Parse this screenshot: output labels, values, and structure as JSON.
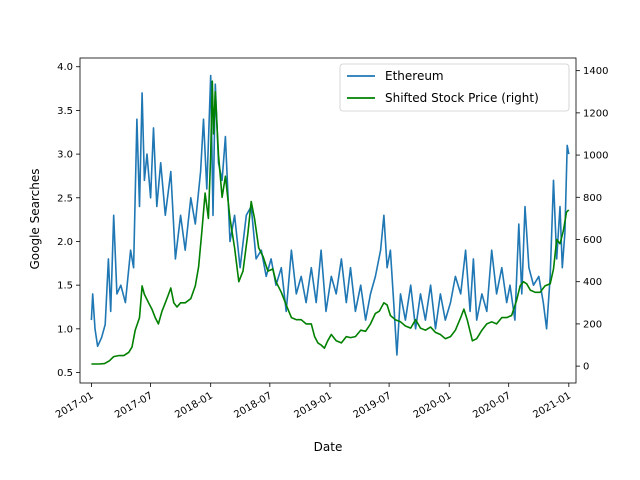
{
  "chart_data": {
    "type": "line",
    "xlabel": "Date",
    "ylabel_left": "Google Searches",
    "xlim": [
      "2016-11-27",
      "2021-01-23"
    ],
    "ylim_left": [
      0.38,
      4.1
    ],
    "ylim_right": [
      -80,
      1460
    ],
    "x_ticks": [
      "2017-01",
      "2017-07",
      "2018-01",
      "2018-07",
      "2019-01",
      "2019-07",
      "2020-01",
      "2020-07",
      "2021-01"
    ],
    "y_ticks_left": [
      "0.5",
      "1.0",
      "1.5",
      "2.0",
      "2.5",
      "3.0",
      "3.5",
      "4.0"
    ],
    "y_ticks_right": [
      "0",
      "200",
      "400",
      "600",
      "800",
      "1000",
      "1200",
      "1400"
    ],
    "legend_position": "top-right",
    "series": [
      {
        "name": "Ethereum",
        "axis": "left",
        "color": "#1f77b4",
        "points": [
          [
            "2017-01-01",
            1.1
          ],
          [
            "2017-01-05",
            1.4
          ],
          [
            "2017-01-12",
            1.0
          ],
          [
            "2017-01-20",
            0.8
          ],
          [
            "2017-02-01",
            0.9
          ],
          [
            "2017-02-12",
            1.05
          ],
          [
            "2017-02-22",
            1.8
          ],
          [
            "2017-03-01",
            1.2
          ],
          [
            "2017-03-10",
            2.3
          ],
          [
            "2017-03-20",
            1.4
          ],
          [
            "2017-04-01",
            1.5
          ],
          [
            "2017-04-15",
            1.3
          ],
          [
            "2017-05-01",
            1.9
          ],
          [
            "2017-05-10",
            1.7
          ],
          [
            "2017-05-20",
            3.4
          ],
          [
            "2017-05-28",
            2.4
          ],
          [
            "2017-06-05",
            3.7
          ],
          [
            "2017-06-12",
            2.7
          ],
          [
            "2017-06-20",
            3.0
          ],
          [
            "2017-07-01",
            2.5
          ],
          [
            "2017-07-10",
            3.3
          ],
          [
            "2017-07-20",
            2.4
          ],
          [
            "2017-08-01",
            2.9
          ],
          [
            "2017-08-15",
            2.3
          ],
          [
            "2017-09-01",
            2.8
          ],
          [
            "2017-09-15",
            1.8
          ],
          [
            "2017-10-01",
            2.3
          ],
          [
            "2017-10-15",
            1.9
          ],
          [
            "2017-11-01",
            2.5
          ],
          [
            "2017-11-15",
            2.2
          ],
          [
            "2017-12-01",
            2.8
          ],
          [
            "2017-12-10",
            3.4
          ],
          [
            "2017-12-20",
            2.6
          ],
          [
            "2018-01-01",
            3.9
          ],
          [
            "2018-01-08",
            2.3
          ],
          [
            "2018-01-15",
            3.8
          ],
          [
            "2018-01-25",
            2.9
          ],
          [
            "2018-02-05",
            2.7
          ],
          [
            "2018-02-15",
            3.2
          ],
          [
            "2018-03-01",
            2.0
          ],
          [
            "2018-03-15",
            2.3
          ],
          [
            "2018-04-01",
            1.7
          ],
          [
            "2018-04-20",
            2.3
          ],
          [
            "2018-05-05",
            2.4
          ],
          [
            "2018-05-20",
            1.8
          ],
          [
            "2018-06-05",
            1.9
          ],
          [
            "2018-06-20",
            1.6
          ],
          [
            "2018-07-05",
            1.8
          ],
          [
            "2018-07-20",
            1.5
          ],
          [
            "2018-08-05",
            1.7
          ],
          [
            "2018-08-20",
            1.2
          ],
          [
            "2018-09-05",
            1.9
          ],
          [
            "2018-09-20",
            1.4
          ],
          [
            "2018-10-05",
            1.6
          ],
          [
            "2018-10-20",
            1.3
          ],
          [
            "2018-11-05",
            1.7
          ],
          [
            "2018-11-20",
            1.3
          ],
          [
            "2018-12-05",
            1.9
          ],
          [
            "2018-12-20",
            1.2
          ],
          [
            "2019-01-05",
            1.6
          ],
          [
            "2019-01-20",
            1.4
          ],
          [
            "2019-02-05",
            1.8
          ],
          [
            "2019-02-20",
            1.3
          ],
          [
            "2019-03-05",
            1.7
          ],
          [
            "2019-03-20",
            1.2
          ],
          [
            "2019-04-05",
            1.5
          ],
          [
            "2019-04-20",
            1.1
          ],
          [
            "2019-05-05",
            1.4
          ],
          [
            "2019-05-20",
            1.6
          ],
          [
            "2019-06-05",
            1.9
          ],
          [
            "2019-06-15",
            2.3
          ],
          [
            "2019-06-25",
            1.7
          ],
          [
            "2019-07-05",
            1.9
          ],
          [
            "2019-07-15",
            1.3
          ],
          [
            "2019-07-25",
            0.7
          ],
          [
            "2019-08-05",
            1.4
          ],
          [
            "2019-08-20",
            1.1
          ],
          [
            "2019-09-05",
            1.5
          ],
          [
            "2019-09-20",
            1.0
          ],
          [
            "2019-10-05",
            1.4
          ],
          [
            "2019-10-20",
            1.1
          ],
          [
            "2019-11-05",
            1.5
          ],
          [
            "2019-11-20",
            1.0
          ],
          [
            "2019-12-05",
            1.4
          ],
          [
            "2019-12-20",
            1.1
          ],
          [
            "2020-01-05",
            1.3
          ],
          [
            "2020-01-20",
            1.6
          ],
          [
            "2020-02-05",
            1.4
          ],
          [
            "2020-02-20",
            1.9
          ],
          [
            "2020-03-05",
            1.2
          ],
          [
            "2020-03-15",
            1.8
          ],
          [
            "2020-03-25",
            1.1
          ],
          [
            "2020-04-10",
            1.4
          ],
          [
            "2020-04-25",
            1.2
          ],
          [
            "2020-05-10",
            1.9
          ],
          [
            "2020-05-25",
            1.4
          ],
          [
            "2020-06-10",
            1.7
          ],
          [
            "2020-06-25",
            1.3
          ],
          [
            "2020-07-05",
            1.5
          ],
          [
            "2020-07-20",
            1.1
          ],
          [
            "2020-08-01",
            2.2
          ],
          [
            "2020-08-10",
            1.4
          ],
          [
            "2020-08-20",
            2.4
          ],
          [
            "2020-09-01",
            1.7
          ],
          [
            "2020-09-15",
            1.5
          ],
          [
            "2020-10-01",
            1.6
          ],
          [
            "2020-10-15",
            1.3
          ],
          [
            "2020-10-25",
            1.0
          ],
          [
            "2020-11-05",
            1.6
          ],
          [
            "2020-11-15",
            2.7
          ],
          [
            "2020-11-25",
            1.8
          ],
          [
            "2020-12-05",
            2.4
          ],
          [
            "2020-12-12",
            1.7
          ],
          [
            "2020-12-20",
            2.1
          ],
          [
            "2020-12-27",
            3.1
          ],
          [
            "2021-01-01",
            3.0
          ]
        ]
      },
      {
        "name": "Shifted Stock Price (right)",
        "axis": "right",
        "color": "#008000",
        "points": [
          [
            "2017-01-01",
            10
          ],
          [
            "2017-01-25",
            10
          ],
          [
            "2017-02-10",
            12
          ],
          [
            "2017-02-25",
            25
          ],
          [
            "2017-03-10",
            45
          ],
          [
            "2017-03-25",
            50
          ],
          [
            "2017-04-10",
            50
          ],
          [
            "2017-04-25",
            65
          ],
          [
            "2017-05-05",
            90
          ],
          [
            "2017-05-15",
            170
          ],
          [
            "2017-05-28",
            230
          ],
          [
            "2017-06-05",
            380
          ],
          [
            "2017-06-12",
            340
          ],
          [
            "2017-06-25",
            300
          ],
          [
            "2017-07-05",
            270
          ],
          [
            "2017-07-15",
            230
          ],
          [
            "2017-07-25",
            200
          ],
          [
            "2017-08-05",
            260
          ],
          [
            "2017-08-15",
            300
          ],
          [
            "2017-08-25",
            340
          ],
          [
            "2017-09-01",
            370
          ],
          [
            "2017-09-10",
            300
          ],
          [
            "2017-09-20",
            280
          ],
          [
            "2017-10-01",
            300
          ],
          [
            "2017-10-15",
            300
          ],
          [
            "2017-11-01",
            320
          ],
          [
            "2017-11-15",
            380
          ],
          [
            "2017-11-25",
            470
          ],
          [
            "2017-12-05",
            640
          ],
          [
            "2017-12-15",
            820
          ],
          [
            "2017-12-25",
            700
          ],
          [
            "2018-01-01",
            1000
          ],
          [
            "2018-01-06",
            1350
          ],
          [
            "2018-01-10",
            1100
          ],
          [
            "2018-01-15",
            1300
          ],
          [
            "2018-01-25",
            1000
          ],
          [
            "2018-02-05",
            800
          ],
          [
            "2018-02-15",
            900
          ],
          [
            "2018-03-01",
            700
          ],
          [
            "2018-03-15",
            560
          ],
          [
            "2018-03-28",
            400
          ],
          [
            "2018-04-10",
            450
          ],
          [
            "2018-04-25",
            630
          ],
          [
            "2018-05-05",
            780
          ],
          [
            "2018-05-15",
            700
          ],
          [
            "2018-05-28",
            560
          ],
          [
            "2018-06-10",
            520
          ],
          [
            "2018-06-25",
            450
          ],
          [
            "2018-07-10",
            460
          ],
          [
            "2018-07-20",
            400
          ],
          [
            "2018-08-05",
            350
          ],
          [
            "2018-08-20",
            290
          ],
          [
            "2018-09-05",
            230
          ],
          [
            "2018-09-20",
            220
          ],
          [
            "2018-10-05",
            220
          ],
          [
            "2018-10-20",
            200
          ],
          [
            "2018-11-05",
            200
          ],
          [
            "2018-11-15",
            140
          ],
          [
            "2018-11-25",
            110
          ],
          [
            "2018-12-05",
            100
          ],
          [
            "2018-12-15",
            85
          ],
          [
            "2018-12-25",
            120
          ],
          [
            "2019-01-05",
            150
          ],
          [
            "2019-01-20",
            120
          ],
          [
            "2019-02-05",
            110
          ],
          [
            "2019-02-20",
            140
          ],
          [
            "2019-03-05",
            135
          ],
          [
            "2019-03-20",
            140
          ],
          [
            "2019-04-05",
            170
          ],
          [
            "2019-04-20",
            165
          ],
          [
            "2019-05-05",
            200
          ],
          [
            "2019-05-20",
            250
          ],
          [
            "2019-06-01",
            260
          ],
          [
            "2019-06-15",
            300
          ],
          [
            "2019-06-25",
            290
          ],
          [
            "2019-07-05",
            240
          ],
          [
            "2019-07-20",
            220
          ],
          [
            "2019-08-05",
            210
          ],
          [
            "2019-08-20",
            190
          ],
          [
            "2019-09-05",
            180
          ],
          [
            "2019-09-20",
            220
          ],
          [
            "2019-10-05",
            180
          ],
          [
            "2019-10-20",
            170
          ],
          [
            "2019-11-05",
            185
          ],
          [
            "2019-11-20",
            160
          ],
          [
            "2019-12-05",
            150
          ],
          [
            "2019-12-20",
            130
          ],
          [
            "2020-01-05",
            140
          ],
          [
            "2020-01-20",
            170
          ],
          [
            "2020-02-05",
            230
          ],
          [
            "2020-02-15",
            270
          ],
          [
            "2020-02-25",
            220
          ],
          [
            "2020-03-12",
            120
          ],
          [
            "2020-03-25",
            130
          ],
          [
            "2020-04-10",
            170
          ],
          [
            "2020-04-25",
            200
          ],
          [
            "2020-05-10",
            210
          ],
          [
            "2020-05-25",
            200
          ],
          [
            "2020-06-10",
            230
          ],
          [
            "2020-06-25",
            230
          ],
          [
            "2020-07-10",
            240
          ],
          [
            "2020-07-25",
            310
          ],
          [
            "2020-08-05",
            380
          ],
          [
            "2020-08-15",
            400
          ],
          [
            "2020-08-25",
            390
          ],
          [
            "2020-09-05",
            360
          ],
          [
            "2020-09-20",
            350
          ],
          [
            "2020-10-05",
            350
          ],
          [
            "2020-10-20",
            380
          ],
          [
            "2020-11-05",
            390
          ],
          [
            "2020-11-15",
            460
          ],
          [
            "2020-11-25",
            600
          ],
          [
            "2020-12-05",
            580
          ],
          [
            "2020-12-15",
            640
          ],
          [
            "2020-12-25",
            730
          ],
          [
            "2021-01-01",
            740
          ]
        ]
      }
    ]
  }
}
